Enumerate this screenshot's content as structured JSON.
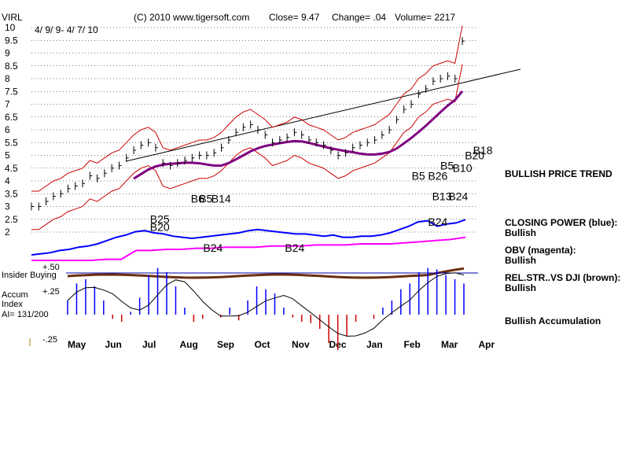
{
  "chart_data": {
    "type": "line",
    "ticker": "VIRL",
    "date_range": "4/ 9/ 9- 4/ 7/ 10",
    "header": {
      "copyright": "(C) 2010 www.tigersoft.com",
      "close": "Close=  9.47",
      "change": "Change= .04",
      "volume": "Volume= 2217"
    },
    "y_ticks": [
      "10",
      "9.5",
      "9",
      "8.5",
      "8",
      "7.5",
      "7",
      "6.5",
      "6",
      "5.5",
      "5",
      "4.5",
      "4",
      "3.5",
      "3",
      "2.5",
      "2"
    ],
    "ylim": [
      2,
      10
    ],
    "x_months": [
      "May",
      "Jun",
      "Jul",
      "Aug",
      "Sep",
      "Oct",
      "Nov",
      "Dec",
      "Jan",
      "Feb",
      "Mar",
      "Apr"
    ],
    "price_series": {
      "name": "Close",
      "values": [
        3.0,
        3.0,
        3.2,
        3.4,
        3.5,
        3.7,
        3.8,
        3.9,
        4.2,
        4.1,
        4.3,
        4.5,
        4.6,
        4.9,
        5.2,
        5.4,
        5.5,
        5.3,
        4.7,
        4.6,
        4.7,
        4.8,
        4.9,
        5.0,
        5.0,
        5.1,
        5.3,
        5.6,
        5.9,
        6.1,
        6.2,
        6.0,
        5.8,
        5.5,
        5.6,
        5.7,
        5.9,
        5.8,
        5.6,
        5.5,
        5.4,
        5.2,
        5.0,
        5.1,
        5.3,
        5.4,
        5.5,
        5.6,
        5.8,
        6.0,
        6.4,
        6.8,
        7.0,
        7.4,
        7.6,
        7.9,
        8.0,
        8.1,
        8.0,
        9.47
      ]
    },
    "closing_power": {
      "name": "CLOSING POWER (blue):",
      "values": [
        1.0,
        1.1,
        1.2,
        1.4,
        1.5,
        1.7,
        1.8,
        2.0,
        2.3,
        2.6,
        2.8,
        3.1,
        3.2,
        3.0,
        2.9,
        2.7,
        2.6,
        2.5,
        2.6,
        2.7,
        2.8,
        2.9,
        3.0,
        3.2,
        3.3,
        3.2,
        3.1,
        3.0,
        2.9,
        2.9,
        2.8,
        2.7,
        2.8,
        2.6,
        2.6,
        2.7,
        2.7,
        2.8,
        3.0,
        3.3,
        3.6,
        4.0,
        4.1,
        3.6,
        3.8,
        3.9,
        4.2
      ]
    },
    "obv": {
      "name": "OBV (magenta):",
      "values": [
        0.5,
        0.5,
        0.5,
        0.5,
        0.5,
        0.6,
        0.6,
        1.4,
        1.4,
        1.5,
        1.5,
        1.6,
        1.6,
        1.7,
        1.7,
        1.7,
        1.8,
        1.8,
        1.8,
        1.9,
        1.9,
        1.9,
        2.0,
        2.0,
        2.0,
        2.1,
        2.2,
        2.3,
        2.4,
        2.6
      ]
    },
    "signals": [
      {
        "label": "B25",
        "x": 0.29,
        "y": 2.3
      },
      {
        "label": "B20",
        "x": 0.29,
        "y": 2.0
      },
      {
        "label": "B6",
        "x": 0.39,
        "y": 3.1
      },
      {
        "label": "B5",
        "x": 0.41,
        "y": 3.1
      },
      {
        "label": "B14",
        "x": 0.44,
        "y": 3.1
      },
      {
        "label": "B24",
        "x": 0.42,
        "y": 0.8
      },
      {
        "label": "B24",
        "x": 0.62,
        "y": 1.0
      },
      {
        "label": "B24",
        "x": 0.97,
        "y": 2.2
      },
      {
        "label": "B5",
        "x": 0.93,
        "y": 4.0
      },
      {
        "label": "B26",
        "x": 0.97,
        "y": 4.0
      },
      {
        "label": "B5",
        "x": 1.0,
        "y": 4.4
      },
      {
        "label": "B10",
        "x": 1.03,
        "y": 4.3
      },
      {
        "label": "B20",
        "x": 1.06,
        "y": 4.8
      },
      {
        "label": "B18",
        "x": 1.08,
        "y": 5.0
      },
      {
        "label": "B13",
        "x": 0.98,
        "y": 3.2
      },
      {
        "label": "B24",
        "x": 1.02,
        "y": 3.2
      }
    ],
    "accum": {
      "title": "Accum",
      "subtitle": "Index",
      "ai": "AI= 131/200",
      "label_top": "+.50",
      "label_mid": "+.25",
      "label_bottom": "-.25",
      "insider": "Insider Buying",
      "values": [
        0.1,
        0.22,
        0.25,
        0.2,
        0.1,
        -0.03,
        -0.05,
        0.02,
        0.12,
        0.28,
        0.33,
        0.3,
        0.2,
        0.05,
        -0.05,
        -0.03,
        0.0,
        -0.02,
        0.05,
        -0.04,
        0.1,
        0.2,
        0.18,
        0.15,
        0.05,
        -0.02,
        -0.05,
        -0.06,
        -0.1,
        -0.2,
        -0.25,
        -0.15,
        -0.05,
        0.0,
        -0.03,
        0.05,
        0.1,
        0.18,
        0.22,
        0.3,
        0.33,
        0.32,
        0.28,
        0.25,
        0.22
      ]
    },
    "right_labels": {
      "trend": "BULLISH PRICE TREND",
      "cp_title": "CLOSING POWER (blue):",
      "cp_value": "Bullish",
      "obv_title": "OBV (magenta):",
      "obv_value": "Bullish",
      "rs_title": "REL.STR..VS DJI (brown):",
      "rs_value": "Bullish",
      "accum": "Bullish Accumulation"
    },
    "colors": {
      "price": "#000000",
      "band": "#cc0000",
      "ma": "#800080",
      "cp": "#0000ff",
      "obv": "#ff00ff",
      "rs": "#6b2f10",
      "accum_pos": "#0000ff",
      "accum_neg": "#cc0000"
    }
  }
}
